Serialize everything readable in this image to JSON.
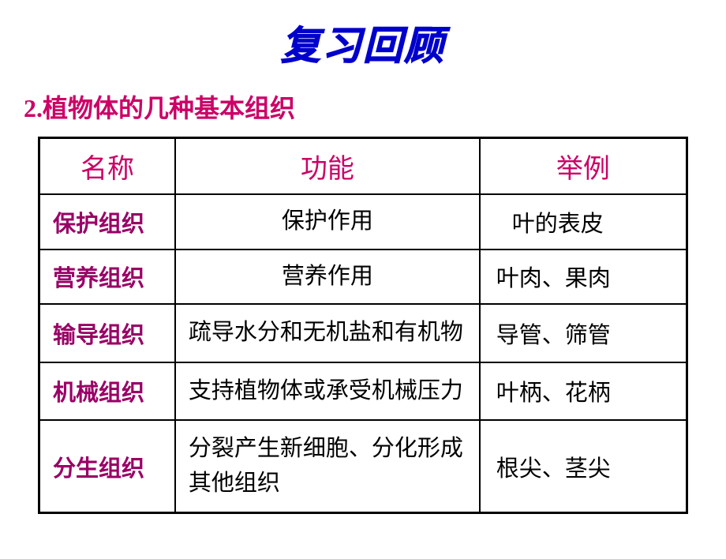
{
  "title": "复习回顾",
  "subtitle": "2.植物体的几种基本组织",
  "colors": {
    "title_color": "#0000cc",
    "subtitle_color": "#cc0066",
    "header_color": "#cc0066",
    "name_color": "#990066",
    "text_color": "#000000",
    "border_color": "#000000",
    "background_color": "#ffffff"
  },
  "table": {
    "headers": {
      "col1": "名称",
      "col2": "功能",
      "col3": "举例"
    },
    "rows": [
      {
        "name": "保护组织",
        "function": "保护作用",
        "example": "叶的表皮",
        "function_centered": true,
        "example_indent": true
      },
      {
        "name": "营养组织",
        "function": "营养作用",
        "example": "叶肉、果肉",
        "function_centered": true
      },
      {
        "name": "输导组织",
        "function": "疏导水分和无机盐和有机物",
        "example": "导管、筛管"
      },
      {
        "name": "机械组织",
        "function": "支持植物体或承受机械压力",
        "example": "叶柄、花柄"
      },
      {
        "name": "分生组织",
        "function": "分裂产生新细胞、分化形成其他组织",
        "example": "根尖、茎尖"
      }
    ]
  },
  "typography": {
    "title_fontsize": 50,
    "subtitle_fontsize": 32,
    "header_fontsize": 34,
    "cell_fontsize": 29,
    "title_font": "KaiTi",
    "header_font": "KaiTi",
    "cell_font": "SimHei"
  }
}
